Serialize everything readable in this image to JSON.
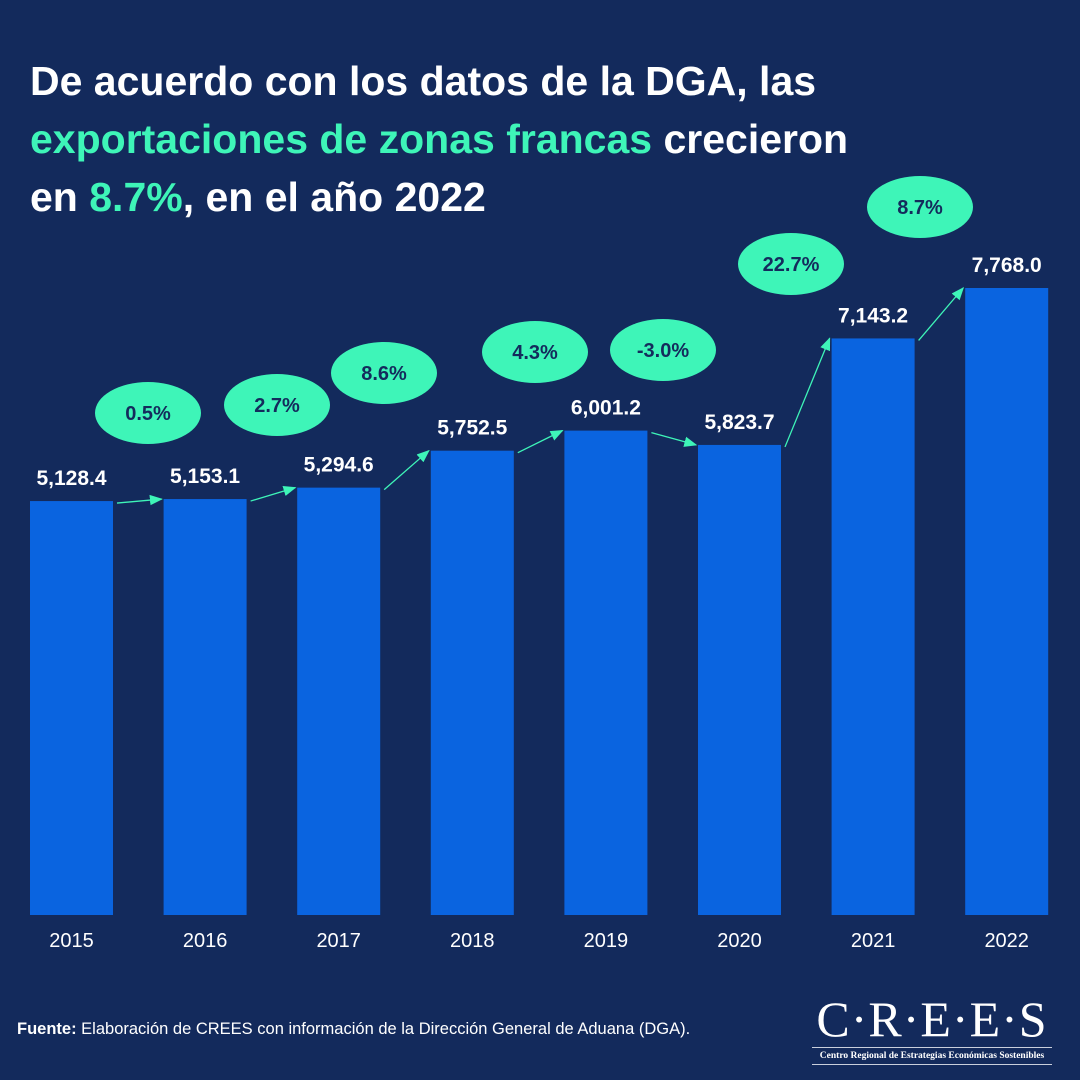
{
  "title": {
    "part1": "De acuerdo con los datos de la DGA, las",
    "highlight1": "exportaciones de zonas francas",
    "part2": " crecieron",
    "part3": "en ",
    "highlight2": "8.7%",
    "part4": ", en el año 2022"
  },
  "chart_data": {
    "type": "bar",
    "categories": [
      "2015",
      "2016",
      "2017",
      "2018",
      "2019",
      "2020",
      "2021",
      "2022"
    ],
    "values": [
      5128.4,
      5153.1,
      5294.6,
      5752.5,
      6001.2,
      5823.7,
      7143.2,
      7768.0
    ],
    "value_labels": [
      "5,128.4",
      "5,153.1",
      "5,294.6",
      "5,752.5",
      "6,001.2",
      "5,823.7",
      "7,143.2",
      "7,768.0"
    ],
    "growth_labels": [
      "0.5%",
      "2.7%",
      "8.6%",
      "4.3%",
      "-3.0%",
      "22.7%",
      "8.7%"
    ],
    "ylim": [
      0,
      7768
    ],
    "grid": false,
    "legend": "none",
    "colors": {
      "bar": "#0a64e0",
      "bubble": "#3ef5b8",
      "bubble_text": "#142b5c",
      "background": "#132a5c"
    }
  },
  "footer": {
    "label": "Fuente:",
    "text": " Elaboración de CREES con información de la Dirección General de Aduana (DGA)."
  },
  "logo": {
    "name": "C·R·E·E·S",
    "subtitle": "Centro Regional de Estrategias Económicas Sostenibles"
  }
}
